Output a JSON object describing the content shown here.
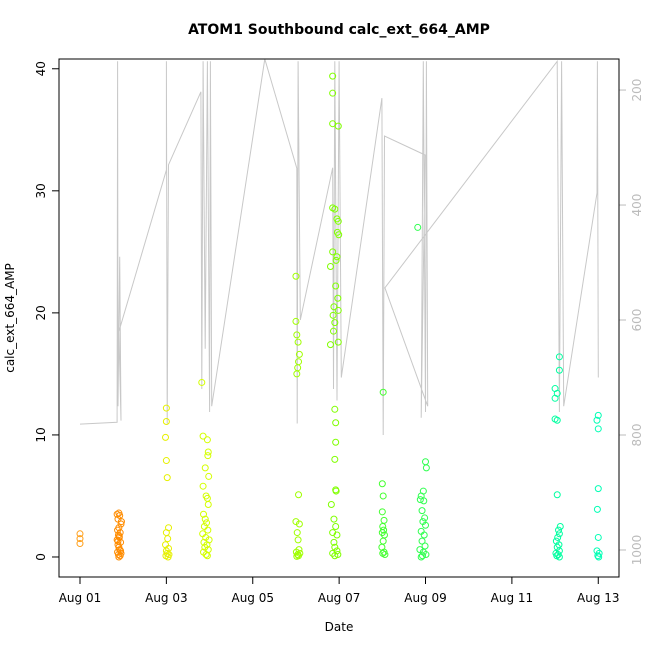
{
  "chart_data": {
    "type": "scatter",
    "title": "ATOM1 Southbound calc_ext_664_AMP",
    "x_label": "Date",
    "y_label": "calc_ext_664_AMP",
    "xlim": [
      0.514,
      13.48
    ],
    "ylim": [
      -1.64,
      40.8
    ],
    "y2lim": [
      1047,
      146
    ],
    "xticks": [
      {
        "value": 1,
        "label": "Aug 01"
      },
      {
        "value": 3,
        "label": "Aug 03"
      },
      {
        "value": 5,
        "label": "Aug 05"
      },
      {
        "value": 7,
        "label": "Aug 07"
      },
      {
        "value": 9,
        "label": "Aug 09"
      },
      {
        "value": 11,
        "label": "Aug 11"
      },
      {
        "value": 13,
        "label": "Aug 13"
      }
    ],
    "yticks": [
      0,
      10,
      20,
      30,
      40
    ],
    "y2ticks": [
      200,
      400,
      600,
      800,
      1000
    ],
    "y2_color": "#bbbbbb",
    "series": [
      {
        "type": "line",
        "axis": "y2",
        "color": "#c8c8c8",
        "x": [
          1.0,
          1.86,
          1.87,
          1.88,
          1.92,
          1.95,
          1.9,
          3.0,
          3.0,
          3.02,
          3.05,
          3.8,
          3.82,
          3.85,
          3.9,
          3.95,
          4.0,
          4.02,
          4.05,
          5.28,
          6.02,
          6.03,
          6.05,
          6.1,
          6.85,
          6.87,
          6.9,
          6.95,
          7.0,
          7.05,
          7.99,
          8.02,
          8.05,
          8.99,
          8.9,
          8.95,
          9.0,
          9.02,
          9.05,
          8.06,
          12.05,
          12.1,
          12.15,
          12.2,
          12.97,
          12.98,
          13.0
        ],
        "values": [
          781,
          778,
          150,
          750,
          490,
          775,
          620,
          339,
          150,
          780,
          330,
          203,
          720,
          150,
          650,
          150,
          760,
          150,
          750,
          146,
          336,
          780,
          150,
          600,
          335,
          720,
          150,
          740,
          150,
          700,
          214,
          800,
          280,
          313,
          770,
          150,
          760,
          150,
          750,
          544,
          150,
          760,
          150,
          750,
          379,
          150,
          700
        ]
      },
      {
        "type": "scatter",
        "color": "#ff9f1a",
        "x": [
          1.0,
          1.0,
          1.0
        ],
        "values": [
          1.9,
          1.5,
          1.1
        ]
      },
      {
        "type": "scatter",
        "color": "#ff8c00",
        "x": [
          1.9,
          1.92,
          1.88,
          1.95,
          1.9,
          1.87,
          1.93,
          1.89,
          1.91,
          1.86,
          1.94,
          1.88,
          1.9,
          1.92,
          1.87,
          1.95,
          1.89,
          1.93,
          1.9,
          1.86,
          1.96,
          1.91,
          1.88,
          1.94
        ],
        "values": [
          3.6,
          3.4,
          3.1,
          2.7,
          2.4,
          2.2,
          2.0,
          1.8,
          1.6,
          1.4,
          1.2,
          1.0,
          0.8,
          0.6,
          0.4,
          0.3,
          0.2,
          0.1,
          0.0,
          3.5,
          2.9,
          1.7,
          1.3,
          0.5
        ]
      },
      {
        "type": "scatter",
        "color": "#e6f000",
        "x": [
          3.0,
          3.0,
          2.98,
          3.0,
          3.02,
          3.05,
          3.0,
          3.03,
          2.98,
          3.05,
          3.0,
          3.02,
          3.06,
          2.99,
          3.04
        ],
        "values": [
          12.2,
          11.1,
          9.8,
          7.9,
          6.5,
          2.4,
          2.0,
          1.5,
          1.0,
          0.7,
          0.5,
          0.3,
          0.2,
          0.1,
          0.0
        ]
      },
      {
        "type": "scatter",
        "color": "#d4ff00",
        "x": [
          3.82,
          3.85,
          3.95,
          3.97,
          3.96,
          3.9,
          3.98,
          3.85,
          3.92,
          3.95,
          3.97,
          3.86,
          3.9,
          3.93,
          3.88,
          3.96,
          3.84,
          3.91,
          3.99,
          3.87,
          3.94,
          3.89,
          3.97,
          3.86,
          3.92,
          3.95
        ],
        "values": [
          14.3,
          9.9,
          9.6,
          8.6,
          8.3,
          7.3,
          6.6,
          5.8,
          5.0,
          4.8,
          4.3,
          3.5,
          3.1,
          2.8,
          2.5,
          2.2,
          1.9,
          1.6,
          1.4,
          1.2,
          1.0,
          0.8,
          0.6,
          0.4,
          0.2,
          0.1
        ]
      },
      {
        "type": "scatter",
        "color": "#a0ff00",
        "x": [
          6.0,
          6.0,
          6.02,
          6.05,
          6.08,
          6.06,
          6.04,
          6.02,
          6.06,
          6.0,
          6.08,
          6.03,
          6.05,
          6.07,
          6.01,
          6.09,
          6.04,
          6.06,
          6.02
        ],
        "values": [
          23.0,
          19.3,
          18.2,
          17.6,
          16.6,
          16.0,
          15.5,
          15.0,
          5.1,
          2.9,
          2.7,
          2.0,
          1.4,
          0.6,
          0.4,
          0.3,
          0.2,
          0.1,
          0.05
        ]
      },
      {
        "type": "scatter",
        "color": "#80ff00",
        "x": [
          6.85,
          6.85,
          6.85,
          6.98,
          6.85,
          6.9,
          6.95,
          6.98,
          6.96,
          6.99,
          6.85,
          6.95,
          6.93,
          6.8,
          6.92,
          6.97,
          6.88,
          6.98,
          6.86,
          6.9,
          6.87,
          6.98,
          6.8,
          6.9,
          6.92,
          6.92,
          6.9,
          6.92,
          6.93,
          6.82,
          6.88,
          6.92,
          6.85,
          6.95,
          6.88,
          6.9,
          6.95,
          6.85,
          6.97,
          6.9
        ],
        "values": [
          39.4,
          38.0,
          35.5,
          35.3,
          28.6,
          28.5,
          27.7,
          27.5,
          26.6,
          26.4,
          25.0,
          24.6,
          24.3,
          23.8,
          22.2,
          21.2,
          20.5,
          20.2,
          19.8,
          19.2,
          18.5,
          17.6,
          17.4,
          12.1,
          11.0,
          9.4,
          8.0,
          5.5,
          5.4,
          4.3,
          3.1,
          2.5,
          2.0,
          1.8,
          1.2,
          0.8,
          0.5,
          0.3,
          0.2,
          0.1
        ]
      },
      {
        "type": "scatter",
        "color": "#44ff30",
        "x": [
          8.02,
          8.0,
          8.02,
          8.0,
          8.04,
          8.01,
          8.03,
          8.0,
          8.05,
          8.02,
          7.99,
          8.04,
          8.01,
          8.06
        ],
        "values": [
          13.5,
          6.0,
          5.0,
          3.7,
          3.0,
          2.5,
          2.2,
          2.0,
          1.8,
          1.3,
          0.8,
          0.4,
          0.3,
          0.2
        ]
      },
      {
        "type": "scatter",
        "color": "#30ff50",
        "x": [
          8.82,
          9.0,
          9.02,
          8.95,
          8.9,
          8.88,
          8.96,
          8.92,
          8.98,
          8.94,
          9.0,
          8.9,
          8.97,
          8.92,
          8.99,
          8.87,
          8.95,
          9.01,
          8.93,
          8.9
        ],
        "values": [
          27.0,
          7.8,
          7.3,
          5.4,
          5.0,
          4.7,
          4.6,
          3.8,
          3.2,
          2.9,
          2.6,
          2.1,
          1.8,
          1.3,
          0.9,
          0.6,
          0.4,
          0.2,
          0.1,
          0.0
        ]
      },
      {
        "type": "scatter",
        "color": "#00ffa0",
        "x": [
          12.1,
          12.1,
          12.0,
          12.05,
          12.0,
          12.0,
          12.05,
          12.05,
          12.12,
          12.08,
          12.1,
          12.06,
          12.03,
          12.09,
          12.05,
          12.1,
          12.02,
          12.07,
          12.04,
          12.1
        ],
        "values": [
          16.4,
          15.3,
          13.8,
          13.4,
          13.0,
          11.3,
          11.2,
          5.1,
          2.5,
          2.2,
          1.9,
          1.6,
          1.3,
          1.0,
          0.8,
          0.5,
          0.3,
          0.2,
          0.1,
          0.0
        ]
      },
      {
        "type": "scatter",
        "color": "#00ffb4",
        "x": [
          13.0,
          12.97,
          13.0,
          13.0,
          12.98,
          13.0,
          12.97,
          13.02,
          12.99,
          13.01
        ],
        "values": [
          11.6,
          11.2,
          10.5,
          5.6,
          3.9,
          1.6,
          0.5,
          0.3,
          0.1,
          0.0
        ]
      }
    ]
  }
}
